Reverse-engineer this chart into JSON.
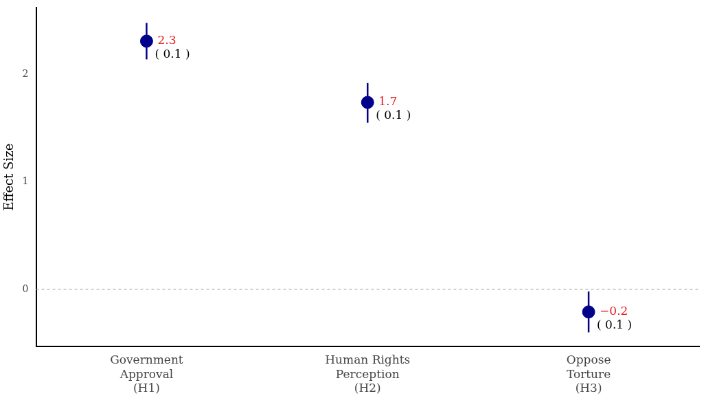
{
  "chart_data": {
    "type": "scatter",
    "ylabel": "Effect Size",
    "categories": [
      "Government\nApproval\n(H1)",
      "Human Rights\nPerception\n(H2)",
      "Oppose\nTorture\n(H3)"
    ],
    "values": [
      2.31,
      1.74,
      -0.21
    ],
    "color": "#00008b",
    "marker": "circle",
    "errors": [
      [
        2.14,
        2.48
      ],
      [
        1.55,
        1.92
      ],
      [
        -0.4,
        -0.02
      ]
    ],
    "value_labels": [
      "2.3",
      "1.7",
      "−0.2"
    ],
    "annotations": [
      {
        "text": "( 0.1 )",
        "x": "Government\nApproval\n(H1)",
        "y": 2.31
      },
      {
        "text": "( 0.1 )",
        "x": "Human Rights\nPerception\n(H2)",
        "y": 1.74
      },
      {
        "text": "( 0.1 )",
        "x": "Oppose\nTorture\n(H3)",
        "y": -0.21
      }
    ],
    "ref_lines": [
      {
        "axis": "y",
        "value": 0,
        "color": "#a0a0a0",
        "line_style": "dashed"
      }
    ],
    "ylim": [
      -0.53,
      2.62
    ],
    "yticks": [
      0,
      1,
      2
    ],
    "grid": false,
    "legend": false
  }
}
